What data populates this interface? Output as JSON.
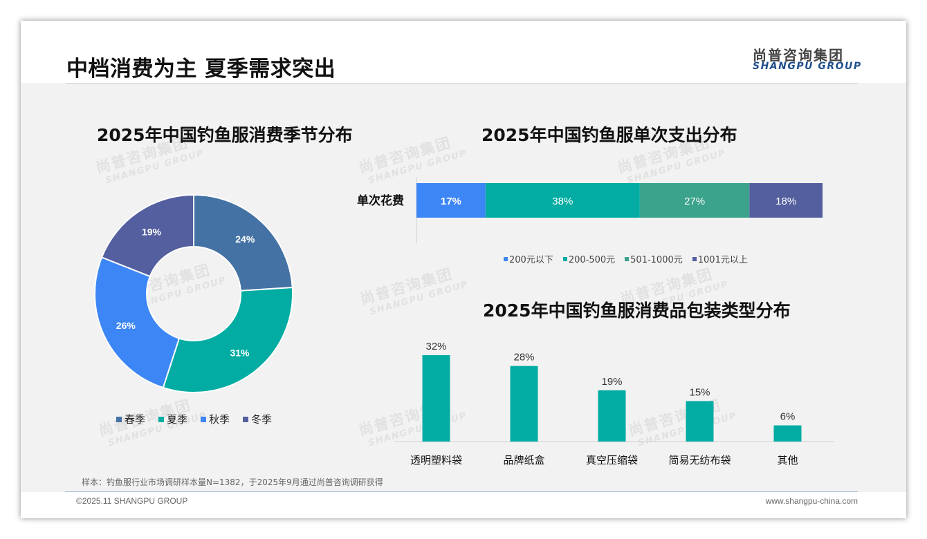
{
  "header": {
    "title": "中档消费为主 夏季需求突出",
    "logo_cn": "尚普咨询集团",
    "logo_en": "SHANGPU GROUP"
  },
  "watermark": {
    "cn": "尚普咨询集团",
    "en": "SHANGPU GROUP"
  },
  "colors": {
    "spring": "#4472a4",
    "summer": "#02aca2",
    "autumn": "#3d86f5",
    "winter": "#535f9e",
    "stack_seg3": "#3ba28b",
    "bar": "#02aca2"
  },
  "chart_data": [
    {
      "type": "pie",
      "title": "2025年中国钓鱼服消费季节分布",
      "variant": "donut",
      "labels": [
        "春季",
        "夏季",
        "秋季",
        "冬季"
      ],
      "values": [
        24,
        31,
        26,
        19
      ],
      "value_labels": [
        "24%",
        "31%",
        "26%",
        "19%"
      ],
      "legend_position": "bottom"
    },
    {
      "type": "bar",
      "orientation": "horizontal",
      "stacked": true,
      "title": "2025年中国钓鱼服单次支出分布",
      "categories": [
        "单次花费"
      ],
      "series": [
        {
          "name": "200元以下",
          "values": [
            17
          ],
          "label": "17%"
        },
        {
          "name": "200-500元",
          "values": [
            38
          ],
          "label": "38%"
        },
        {
          "name": "501-1000元",
          "values": [
            27
          ],
          "label": "27%"
        },
        {
          "name": "1001元以上",
          "values": [
            18
          ],
          "label": "18%"
        }
      ],
      "legend_position": "bottom"
    },
    {
      "type": "bar",
      "title": "2025年中国钓鱼服消费品包装类型分布",
      "categories": [
        "透明塑料袋",
        "品牌纸盒",
        "真空压缩袋",
        "简易无纺布袋",
        "其他"
      ],
      "values": [
        32,
        28,
        19,
        15,
        6
      ],
      "value_labels": [
        "32%",
        "28%",
        "19%",
        "15%",
        "6%"
      ]
    }
  ],
  "footer": {
    "note": "样本：钓鱼服行业市场调研样本量N=1382，于2025年9月通过尚普咨询调研获得",
    "copyright": "©2025.11 SHANGPU GROUP",
    "website": "www.shangpu-china.com"
  }
}
